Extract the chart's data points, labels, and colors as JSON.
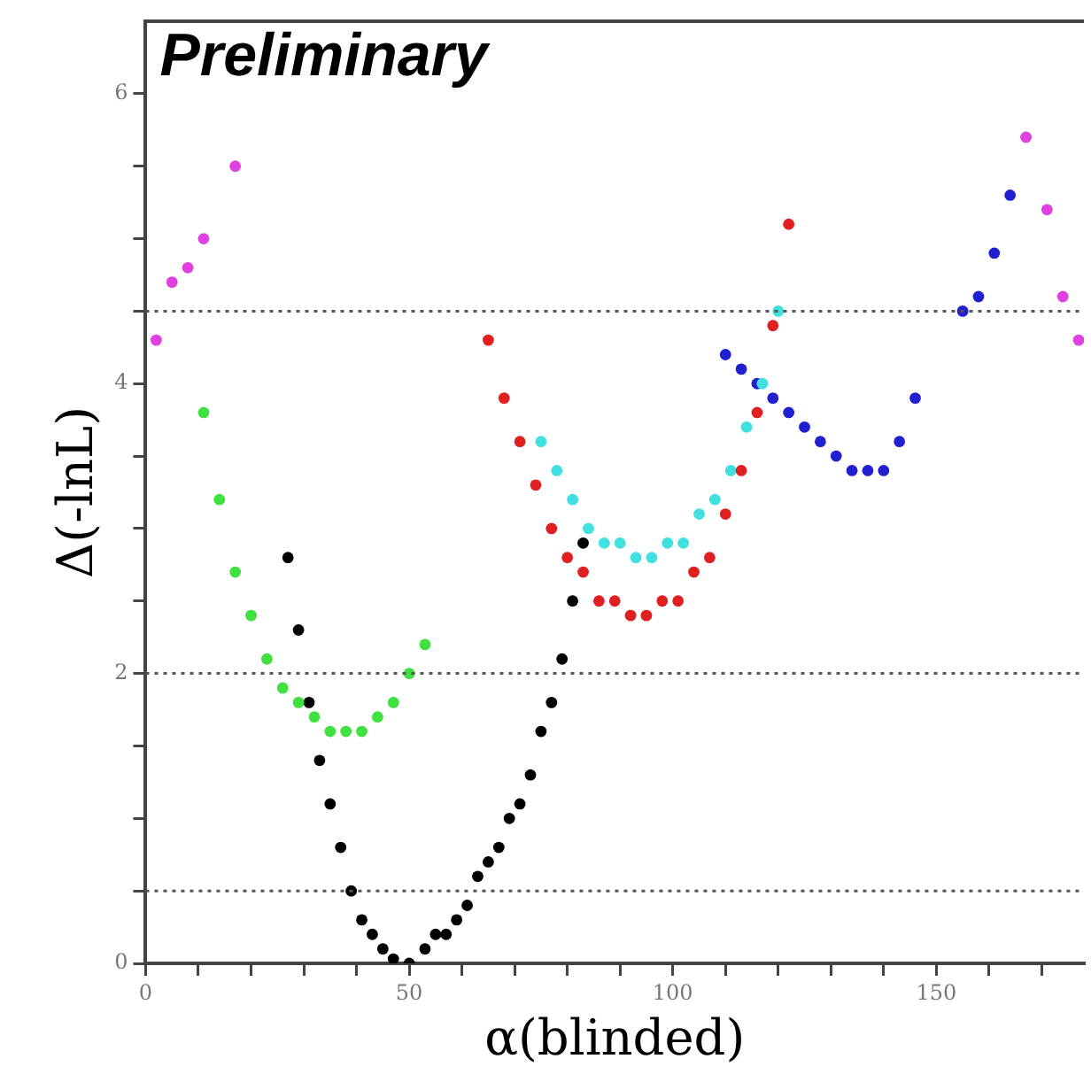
{
  "chart_data": {
    "type": "scatter",
    "xlabel": "α(blinded)",
    "ylabel": "Δ(-lnL)",
    "annotations": [
      "Preliminary"
    ],
    "xlim": [
      0,
      178
    ],
    "ylim": [
      0,
      6.5
    ],
    "xticks": [
      0,
      {
        "value": 10,
        "label": null
      },
      {
        "value": 20,
        "label": null
      },
      {
        "value": 30,
        "label": null
      },
      {
        "value": 40,
        "label": null
      },
      50,
      {
        "value": 60,
        "label": null
      },
      {
        "value": 70,
        "label": null
      },
      {
        "value": 80,
        "label": null
      },
      {
        "value": 90,
        "label": null
      },
      100,
      {
        "value": 110,
        "label": null
      },
      {
        "value": 120,
        "label": null
      },
      {
        "value": 130,
        "label": null
      },
      {
        "value": 140,
        "label": null
      },
      150,
      {
        "value": 160,
        "label": null
      },
      {
        "value": 170,
        "label": null
      }
    ],
    "yticks": [
      0,
      {
        "value": 0.5,
        "label": null
      },
      {
        "value": 1,
        "label": null
      },
      {
        "value": 1.5,
        "label": null
      },
      2,
      {
        "value": 2.5,
        "label": null
      },
      {
        "value": 3,
        "label": null
      },
      {
        "value": 3.5,
        "label": null
      },
      4,
      {
        "value": 4.5,
        "label": null
      },
      {
        "value": 5,
        "label": null
      },
      {
        "value": 5.5,
        "label": null
      },
      6
    ],
    "grid": false,
    "legend": false,
    "marker": "circle",
    "ref_lines": [
      {
        "axis": "y",
        "value": 0.5,
        "color": "#555555",
        "line_style": "dotted"
      },
      {
        "axis": "y",
        "value": 2,
        "color": "#555555",
        "line_style": "dotted"
      },
      {
        "axis": "y",
        "value": 4.5,
        "color": "#555555",
        "line_style": "dotted"
      }
    ],
    "series": [
      {
        "color": "#e040e0",
        "x": [
          2,
          5,
          8,
          11,
          17,
          167,
          171,
          174,
          177
        ],
        "values": [
          4.3,
          4.7,
          4.8,
          5.0,
          5.5,
          5.7,
          5.2,
          4.6,
          4.3
        ]
      },
      {
        "color": "#40e040",
        "x": [
          11,
          14,
          17,
          20,
          23,
          26,
          29,
          32,
          35,
          38,
          41,
          44,
          47,
          50,
          53
        ],
        "values": [
          3.8,
          3.2,
          2.7,
          2.4,
          2.1,
          1.9,
          1.8,
          1.7,
          1.6,
          1.6,
          1.6,
          1.7,
          1.8,
          2.0,
          2.2
        ]
      },
      {
        "color": "#000000",
        "x": [
          27,
          29,
          31,
          33,
          35,
          37,
          39,
          41,
          43,
          45,
          47,
          50,
          53,
          55,
          57,
          59,
          61,
          63,
          65,
          67,
          69,
          71,
          73,
          75,
          77,
          79,
          81,
          83
        ],
        "values": [
          2.8,
          2.3,
          1.8,
          1.4,
          1.1,
          0.8,
          0.5,
          0.3,
          0.2,
          0.1,
          0.03,
          0,
          0.1,
          0.2,
          0.2,
          0.3,
          0.4,
          0.6,
          0.7,
          0.8,
          1.0,
          1.1,
          1.3,
          1.6,
          1.8,
          2.1,
          2.5,
          2.9
        ]
      },
      {
        "color": "#e02020",
        "x": [
          65,
          68,
          71,
          74,
          77,
          80,
          83,
          86,
          89,
          92,
          95,
          98,
          101,
          104,
          107,
          110,
          113,
          116,
          119,
          122
        ],
        "values": [
          4.3,
          3.9,
          3.6,
          3.3,
          3.0,
          2.8,
          2.7,
          2.5,
          2.5,
          2.4,
          2.4,
          2.5,
          2.5,
          2.7,
          2.8,
          3.1,
          3.4,
          3.8,
          4.4,
          5.1
        ]
      },
      {
        "color": "#40e0e0",
        "x": [
          75,
          78,
          81,
          84,
          87,
          90,
          93,
          96,
          99,
          102,
          105,
          108,
          111,
          114,
          117,
          120
        ],
        "values": [
          3.6,
          3.4,
          3.2,
          3.0,
          2.9,
          2.9,
          2.8,
          2.8,
          2.9,
          2.9,
          3.1,
          3.2,
          3.4,
          3.7,
          4.0,
          4.5
        ]
      },
      {
        "color": "#2020d0",
        "x": [
          110,
          113,
          116,
          119,
          122,
          125,
          128,
          131,
          134,
          137,
          140,
          143,
          146,
          155,
          158,
          161,
          164
        ],
        "values": [
          4.2,
          4.1,
          4.0,
          3.9,
          3.8,
          3.7,
          3.6,
          3.5,
          3.4,
          3.4,
          3.4,
          3.6,
          3.9,
          4.5,
          4.6,
          4.9,
          5.3
        ]
      }
    ]
  }
}
